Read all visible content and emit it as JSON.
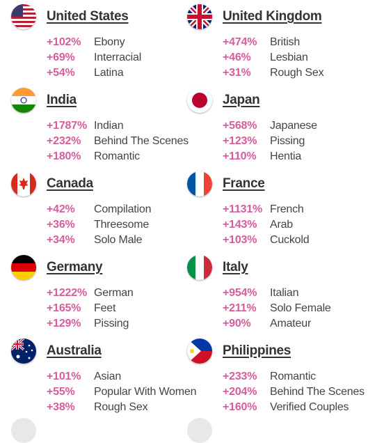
{
  "countries": [
    {
      "name": "United States",
      "flag": "us-flag-icon",
      "rows": [
        {
          "pct": "+102%",
          "cat": "Ebony"
        },
        {
          "pct": "+69%",
          "cat": "Interracial"
        },
        {
          "pct": "+54%",
          "cat": "Latina"
        }
      ]
    },
    {
      "name": "United Kingdom",
      "flag": "uk-flag-icon",
      "rows": [
        {
          "pct": "+474%",
          "cat": "British"
        },
        {
          "pct": "+46%",
          "cat": "Lesbian"
        },
        {
          "pct": "+31%",
          "cat": "Rough Sex"
        }
      ]
    },
    {
      "name": "India",
      "flag": "india-flag-icon",
      "rows": [
        {
          "pct": "+1787%",
          "cat": "Indian"
        },
        {
          "pct": "+232%",
          "cat": "Behind The Scenes"
        },
        {
          "pct": "+180%",
          "cat": "Romantic"
        }
      ]
    },
    {
      "name": "Japan",
      "flag": "japan-flag-icon",
      "rows": [
        {
          "pct": "+568%",
          "cat": "Japanese"
        },
        {
          "pct": "+123%",
          "cat": "Pissing"
        },
        {
          "pct": "+110%",
          "cat": "Hentia"
        }
      ]
    },
    {
      "name": "Canada",
      "flag": "canada-flag-icon",
      "rows": [
        {
          "pct": "+42%",
          "cat": "Compilation"
        },
        {
          "pct": "+36%",
          "cat": "Threesome"
        },
        {
          "pct": "+34%",
          "cat": "Solo Male"
        }
      ]
    },
    {
      "name": "France",
      "flag": "france-flag-icon",
      "rows": [
        {
          "pct": "+1131%",
          "cat": "French"
        },
        {
          "pct": "+143%",
          "cat": "Arab"
        },
        {
          "pct": "+103%",
          "cat": "Cuckold"
        }
      ]
    },
    {
      "name": "Germany",
      "flag": "germany-flag-icon",
      "rows": [
        {
          "pct": "+1222%",
          "cat": "German"
        },
        {
          "pct": "+165%",
          "cat": "Feet"
        },
        {
          "pct": "+129%",
          "cat": "Pissing"
        }
      ]
    },
    {
      "name": "Italy",
      "flag": "italy-flag-icon",
      "rows": [
        {
          "pct": "+954%",
          "cat": "Italian"
        },
        {
          "pct": "+211%",
          "cat": "Solo Female"
        },
        {
          "pct": "+90%",
          "cat": "Amateur"
        }
      ]
    },
    {
      "name": "Australia",
      "flag": "australia-flag-icon",
      "rows": [
        {
          "pct": "+101%",
          "cat": "Asian"
        },
        {
          "pct": "+55%",
          "cat": "Popular With Women"
        },
        {
          "pct": "+38%",
          "cat": "Rough Sex"
        }
      ]
    },
    {
      "name": "Philippines",
      "flag": "philippines-flag-icon",
      "rows": [
        {
          "pct": "+233%",
          "cat": "Romantic"
        },
        {
          "pct": "+204%",
          "cat": "Behind The Scenes"
        },
        {
          "pct": "+160%",
          "cat": "Verified Couples"
        }
      ]
    }
  ],
  "colors": {
    "percent": "#d65c9c",
    "country": "#333333",
    "category": "#444444"
  }
}
